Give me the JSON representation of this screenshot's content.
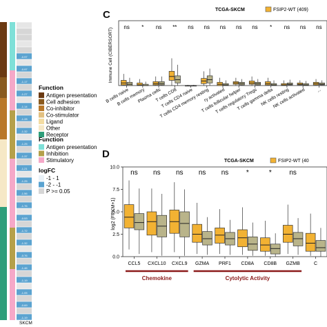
{
  "heatmap": {
    "bottom_label": "SKCM",
    "function_title": "Function",
    "function_items": [
      {
        "label": "Antigen presentation",
        "color": "#6b3a12"
      },
      {
        "label": "Cell adhesion",
        "color": "#8a5a1e"
      },
      {
        "label": "Co-inhibitor",
        "color": "#b9782a"
      },
      {
        "label": "Co-stimulator",
        "color": "#e2c080"
      },
      {
        "label": "Ligand",
        "color": "#f3dca2"
      },
      {
        "label": "Other",
        "color": "#f6e8c6"
      },
      {
        "label": "Receptor",
        "color": "#2f9e7a"
      }
    ],
    "function2_title": "Function",
    "function2_items": [
      {
        "label": "Antigen presentation",
        "color": "#7fe0d8"
      },
      {
        "label": "Inhibition",
        "color": "#b5a04a"
      },
      {
        "label": "Stimulatory",
        "color": "#f5a8c8"
      }
    ],
    "logfc_title": "logFC",
    "logfc_items": [
      {
        "label": "-1 - 1",
        "color": "#eaf2f8"
      },
      {
        "label": "-2 - -1",
        "color": "#5ba3d0"
      },
      {
        "label": "P >= 0.05",
        "color": "#d6d6d6"
      }
    ],
    "cell_values": [
      "-0.97",
      "-0.97",
      "-1.17",
      "-1.27",
      "-1.14",
      "-1.28",
      "-1.32",
      "-1.25",
      "-1.37",
      "-1.21",
      "-1.25",
      "-1.56",
      "-1.76",
      "-0.53",
      "-1.72",
      "-1.32",
      "-0.76",
      "-1.46",
      "-1.19",
      "-1.05",
      "-0.69",
      "-1.19",
      "-1.08",
      "-0.74"
    ]
  },
  "chart_data": [
    {
      "panel": "C",
      "type": "box",
      "title": "TCGA-SKCM",
      "legend": [
        "FSIP2-WT (409)"
      ],
      "ylabel": "Immune Cell (CIBERSORT)",
      "categories": [
        "B cells naive",
        "B cells memory",
        "Plasma cells",
        "T cells CD8",
        "T cells CD4 naive",
        "T cells CD4 memory resting",
        "ry activated",
        "T cells follicular helper",
        "T cells regulatory Tregs",
        "T cells gamma delta",
        "NK cells resting",
        "NK cells activated",
        "..."
      ],
      "significance": [
        "ns",
        "*",
        "ns",
        "**",
        "ns",
        "ns",
        "ns",
        "ns",
        "ns",
        "*",
        "ns",
        "ns",
        "ns"
      ],
      "ylim": [
        0,
        1
      ],
      "series": [
        {
          "color": "#f2b233",
          "values": [
            [
              0.0,
              0.01,
              0.04,
              0.08,
              0.18
            ],
            [
              0.0,
              0.0,
              0.01,
              0.04,
              0.1
            ],
            [
              0.0,
              0.01,
              0.03,
              0.06,
              0.14
            ],
            [
              0.0,
              0.08,
              0.14,
              0.22,
              0.42
            ],
            [
              0.0,
              0.0,
              0.0,
              0.0,
              0.01
            ],
            [
              0.0,
              0.03,
              0.07,
              0.11,
              0.22
            ],
            [
              0.0,
              0.0,
              0.02,
              0.05,
              0.12
            ],
            [
              0.0,
              0.02,
              0.04,
              0.06,
              0.12
            ],
            [
              0.0,
              0.02,
              0.04,
              0.07,
              0.14
            ],
            [
              0.0,
              0.01,
              0.03,
              0.06,
              0.12
            ],
            [
              0.0,
              0.0,
              0.01,
              0.03,
              0.08
            ],
            [
              0.0,
              0.01,
              0.02,
              0.04,
              0.08
            ],
            [
              0.0,
              0.01,
              0.03,
              0.05,
              0.1
            ]
          ]
        },
        {
          "color": "#b9b48a",
          "values": [
            [
              0.0,
              0.0,
              0.02,
              0.05,
              0.12
            ],
            [
              0.0,
              0.0,
              0.0,
              0.02,
              0.06
            ],
            [
              0.0,
              0.01,
              0.03,
              0.06,
              0.14
            ],
            [
              0.0,
              0.04,
              0.09,
              0.15,
              0.32
            ],
            [
              0.0,
              0.0,
              0.0,
              0.0,
              0.01
            ],
            [
              0.0,
              0.04,
              0.09,
              0.15,
              0.26
            ],
            [
              0.0,
              0.0,
              0.01,
              0.03,
              0.08
            ],
            [
              0.0,
              0.01,
              0.03,
              0.05,
              0.1
            ],
            [
              0.0,
              0.01,
              0.03,
              0.05,
              0.1
            ],
            [
              0.0,
              0.0,
              0.01,
              0.03,
              0.08
            ],
            [
              0.0,
              0.01,
              0.02,
              0.04,
              0.09
            ],
            [
              0.0,
              0.0,
              0.01,
              0.03,
              0.07
            ],
            [
              0.0,
              0.01,
              0.02,
              0.04,
              0.08
            ]
          ]
        }
      ]
    },
    {
      "panel": "D",
      "type": "box",
      "title": "TCGA-SKCM",
      "legend": [
        "FSIP2-WT (40"
      ],
      "ylabel": "log2 (FPKM+1)",
      "categories": [
        "CCL5",
        "CXCL10",
        "CXCL9",
        "GZMA",
        "PRF1",
        "CD8A",
        "CD8B",
        "GZMB",
        "C"
      ],
      "significance": [
        "ns",
        "ns",
        "ns",
        "ns",
        "ns",
        "*",
        "*",
        "ns",
        ""
      ],
      "ylim": [
        0,
        10
      ],
      "yticks": [
        0.0,
        2.5,
        5.0,
        7.5,
        10.0
      ],
      "groups": [
        {
          "label": "Chemokine",
          "categories": [
            "CCL5",
            "CXCL10",
            "CXCL9"
          ]
        },
        {
          "label": "Cytolytic Activity",
          "categories": [
            "GZMA",
            "PRF1",
            "CD8A",
            "CD8B",
            "GZMB"
          ]
        }
      ],
      "series": [
        {
          "color": "#f2b233",
          "values": [
            [
              0.8,
              3.2,
              4.4,
              5.8,
              8.5
            ],
            [
              0.5,
              2.4,
              3.9,
              5.0,
              7.6
            ],
            [
              0.5,
              2.6,
              3.9,
              5.2,
              8.3
            ],
            [
              0.3,
              1.6,
              2.5,
              3.6,
              6.0
            ],
            [
              0.3,
              1.5,
              2.4,
              3.2,
              5.3
            ],
            [
              0.2,
              1.1,
              2.1,
              3.0,
              5.5
            ],
            [
              0.1,
              0.6,
              1.3,
              2.1,
              4.0
            ],
            [
              0.3,
              1.6,
              2.5,
              3.5,
              5.8
            ],
            [
              0.1,
              0.6,
              1.5,
              2.6,
              4.8
            ]
          ]
        },
        {
          "color": "#b9b48a",
          "values": [
            [
              0.3,
              3.0,
              3.8,
              4.8,
              7.6
            ],
            [
              0.1,
              2.2,
              3.4,
              4.6,
              7.0
            ],
            [
              0.1,
              2.2,
              3.7,
              5.0,
              7.5
            ],
            [
              0.2,
              1.3,
              2.0,
              2.8,
              4.4
            ],
            [
              0.2,
              1.3,
              2.0,
              2.7,
              4.1
            ],
            [
              0.1,
              0.7,
              1.4,
              2.2,
              3.8
            ],
            [
              0.0,
              0.3,
              0.9,
              1.4,
              2.6
            ],
            [
              0.2,
              1.2,
              2.0,
              2.7,
              4.3
            ],
            [
              0.0,
              0.6,
              1.0,
              1.8,
              3.2
            ]
          ]
        }
      ]
    }
  ]
}
